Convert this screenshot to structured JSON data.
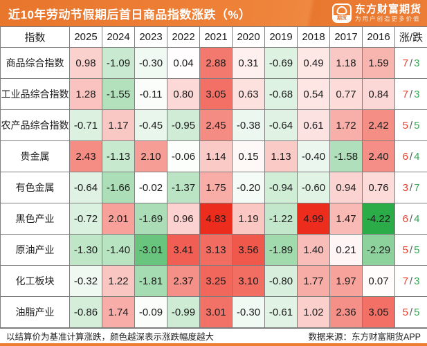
{
  "title": "近10年劳动节假期后首日商品指数涨跌（%）",
  "brand": {
    "name": "东方财富期货",
    "slogan": "为用户创造更多价值",
    "icon_label": "期货"
  },
  "footer": {
    "note": "以结算价为基准计算涨跌，颜色越深表示涨跌幅度越大",
    "source": "数据来源：东方财富期货APP"
  },
  "colors": {
    "accent_orange": "#ED7D31",
    "up_cell_max": "#EC2C1D",
    "down_cell_max": "#1EA73C",
    "zero_cell": "#FFFFFF",
    "up_text": "#EA3B28",
    "down_text": "#35A853"
  },
  "chart_data": {
    "type": "heatmap",
    "title": "近10年劳动节假期后首日商品指数涨跌（%）",
    "row_header": "指数",
    "updown_header": "涨/跌",
    "columns": [
      "2025",
      "2024",
      "2023",
      "2022",
      "2021",
      "2020",
      "2019",
      "2018",
      "2017",
      "2016"
    ],
    "rows": [
      {
        "label": "商品综合指数",
        "values": [
          0.98,
          -1.09,
          -0.3,
          0.04,
          2.88,
          0.31,
          -0.69,
          0.49,
          1.18,
          1.59
        ],
        "up": 7,
        "down": 3
      },
      {
        "label": "工业品综合指数",
        "values": [
          1.28,
          -1.55,
          -0.11,
          0.8,
          3.05,
          0.63,
          -0.68,
          0.54,
          0.77,
          0.84
        ],
        "up": 7,
        "down": 3
      },
      {
        "label": "农产品综合指数",
        "values": [
          -0.71,
          1.17,
          -0.45,
          -0.95,
          2.45,
          -0.38,
          -0.64,
          0.61,
          1.72,
          2.42
        ],
        "up": 5,
        "down": 5
      },
      {
        "label": "贵金属",
        "values": [
          2.43,
          -1.13,
          2.1,
          -0.06,
          1.14,
          0.15,
          1.13,
          -0.4,
          -1.58,
          2.4
        ],
        "up": 6,
        "down": 4
      },
      {
        "label": "有色金属",
        "values": [
          -0.64,
          -1.66,
          -0.02,
          -1.37,
          1.75,
          -0.2,
          -0.94,
          -0.6,
          0.94,
          0.76
        ],
        "up": 3,
        "down": 7
      },
      {
        "label": "黑色产业",
        "values": [
          -0.72,
          2.01,
          -1.69,
          0.96,
          4.83,
          1.19,
          -1.22,
          4.99,
          1.47,
          -4.22
        ],
        "up": 6,
        "down": 4
      },
      {
        "label": "原油产业",
        "values": [
          -1.3,
          -1.4,
          -3.01,
          3.41,
          3.13,
          3.56,
          -1.89,
          1.4,
          0.21,
          -2.29
        ],
        "up": 5,
        "down": 5
      },
      {
        "label": "化工板块",
        "values": [
          -0.32,
          1.22,
          -1.81,
          2.37,
          3.25,
          3.1,
          -0.8,
          1.77,
          1.97,
          0.07
        ],
        "up": 7,
        "down": 3
      },
      {
        "label": "油脂产业",
        "values": [
          -0.86,
          1.74,
          -0.09,
          -0.99,
          3.01,
          -0.3,
          -0.61,
          1.02,
          2.36,
          3.05
        ],
        "up": 5,
        "down": 5
      }
    ],
    "color_scale": {
      "positive_max": "#EC2C1D",
      "negative_max": "#1EA73C",
      "zero": "#FFFFFF",
      "abs_cap": 4.5
    },
    "legend_position": "none",
    "grid": true
  }
}
